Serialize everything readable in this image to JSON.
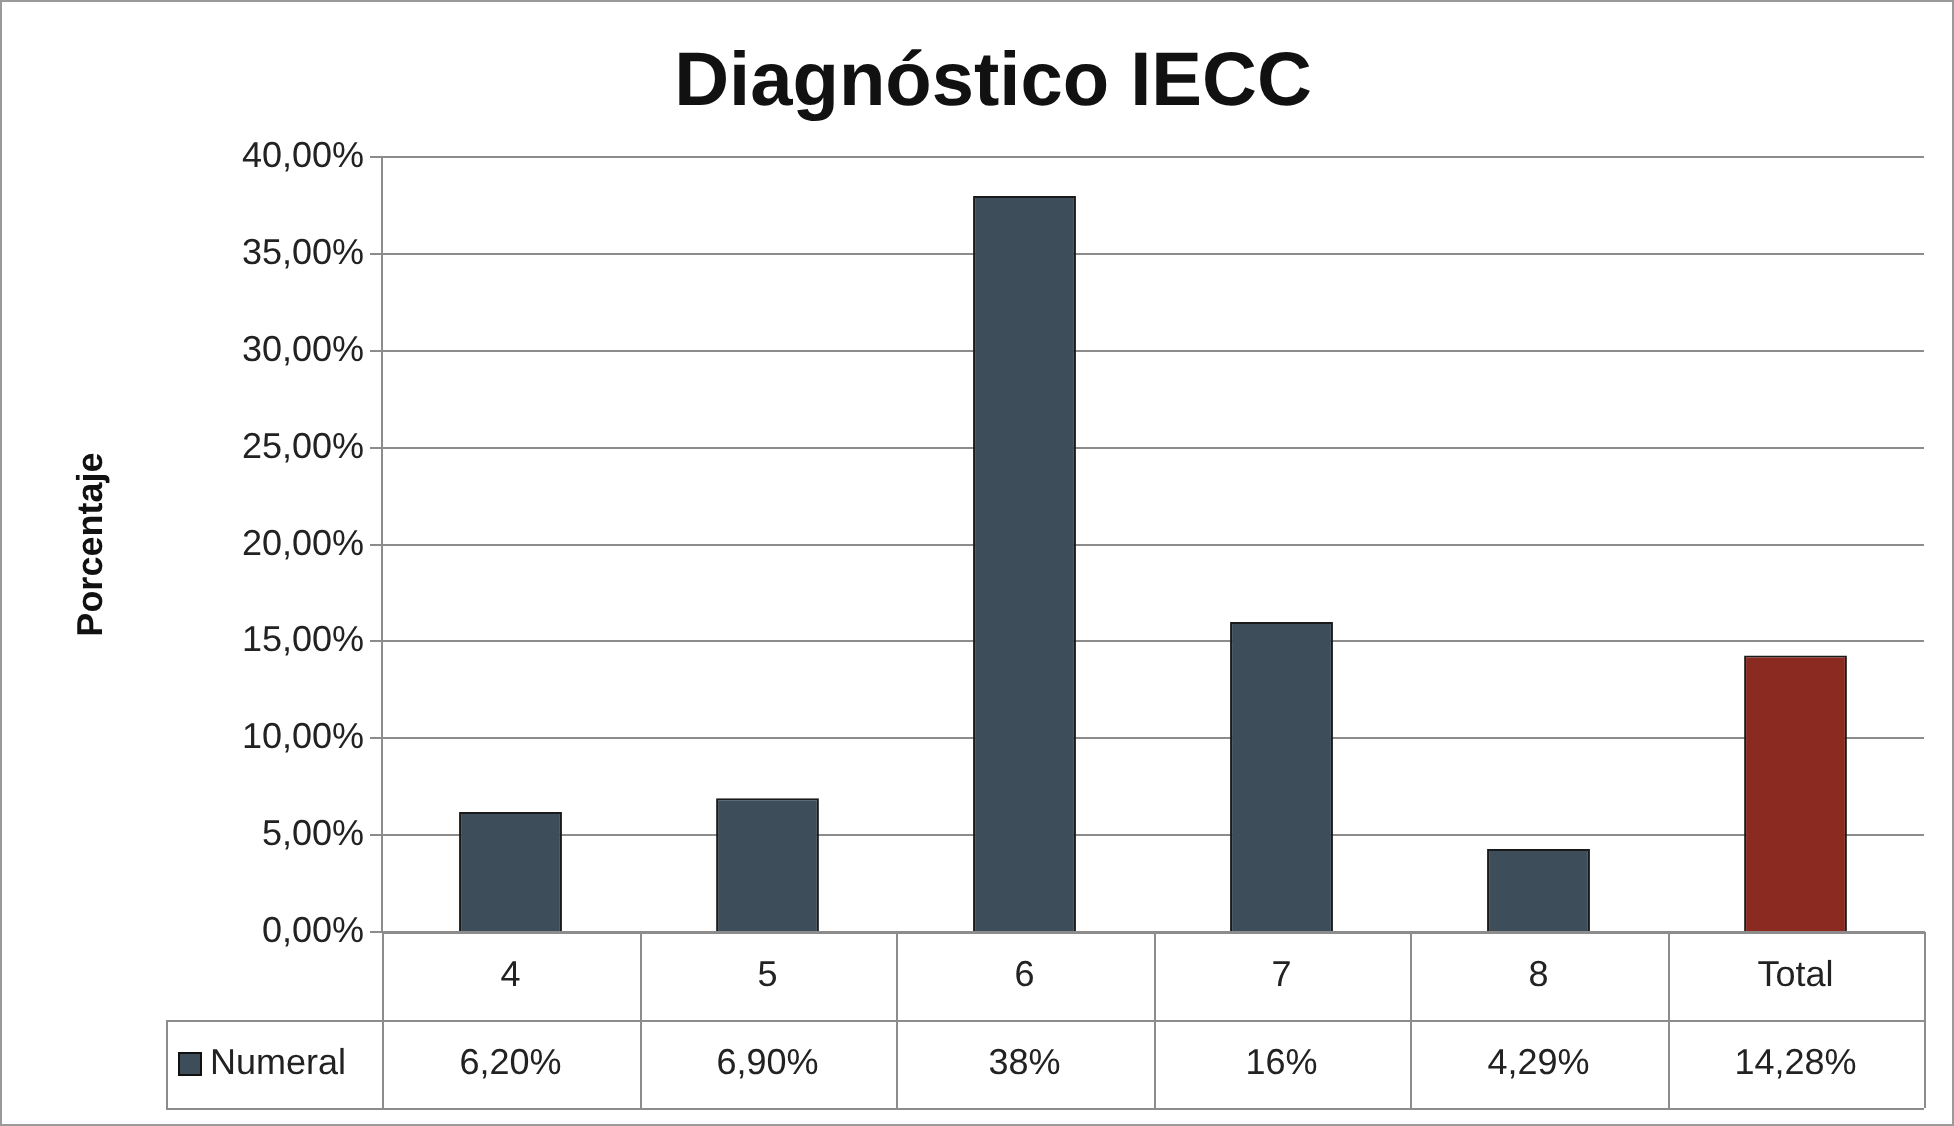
{
  "chart_data": {
    "type": "bar",
    "title": "Diagnóstico IECC",
    "ylabel": "Porcentaje",
    "categories": [
      "4",
      "5",
      "6",
      "7",
      "8",
      "Total"
    ],
    "series": [
      {
        "name": "Numeral",
        "color": "#3d4d5a",
        "colors": [
          "#3d4d5a",
          "#3d4d5a",
          "#3d4d5a",
          "#3d4d5a",
          "#3d4d5a",
          "#8b2a20"
        ],
        "values": [
          6.2,
          6.9,
          38,
          16,
          4.29,
          14.28
        ],
        "value_labels": [
          "6,20%",
          "6,90%",
          "38%",
          "16%",
          "4,29%",
          "14,28%"
        ]
      }
    ],
    "ylim": [
      0,
      40
    ],
    "yticks": [
      {
        "value": 0,
        "label": "0,00%"
      },
      {
        "value": 5,
        "label": "5,00%"
      },
      {
        "value": 10,
        "label": "10,00%"
      },
      {
        "value": 15,
        "label": "15,00%"
      },
      {
        "value": 20,
        "label": "20,00%"
      },
      {
        "value": 25,
        "label": "25,00%"
      },
      {
        "value": 30,
        "label": "30,00%"
      },
      {
        "value": 35,
        "label": "35,00%"
      },
      {
        "value": 40,
        "label": "40,00%"
      }
    ],
    "grid": "y",
    "legend": "bottom"
  }
}
